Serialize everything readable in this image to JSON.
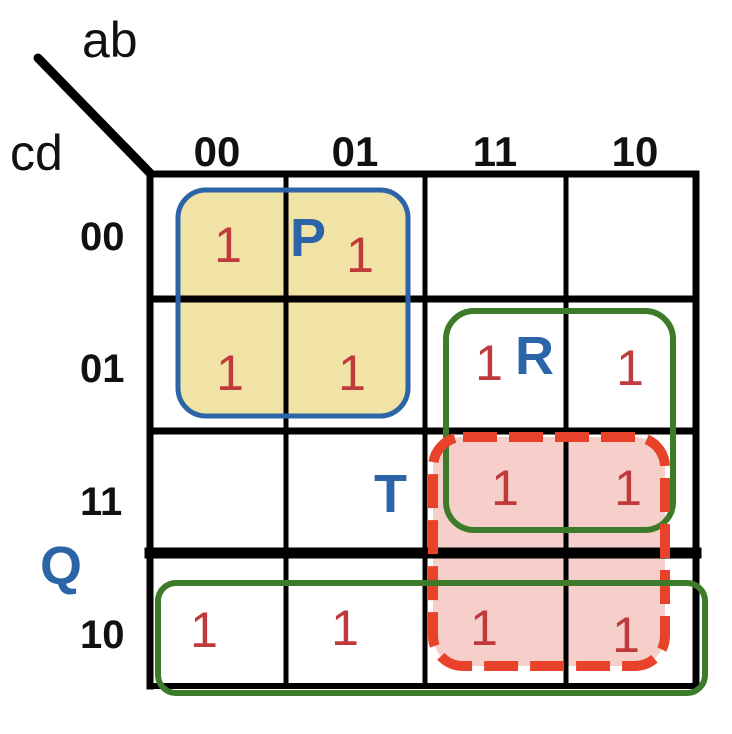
{
  "title_vars": {
    "columns": "ab",
    "rows": "cd"
  },
  "column_headers": [
    "00",
    "01",
    "11",
    "10"
  ],
  "row_headers": [
    "00",
    "01",
    "11",
    "10"
  ],
  "cells": [
    [
      "1",
      "1",
      "",
      ""
    ],
    [
      "1",
      "1",
      "1",
      "1"
    ],
    [
      "",
      "",
      "1",
      "1"
    ],
    [
      "1",
      "1",
      "1",
      "1"
    ]
  ],
  "groups": [
    {
      "label": "P",
      "color": "#2c64a8",
      "fill": "#f1e3a6",
      "style": "solid"
    },
    {
      "label": "R",
      "color": "#3d7a2a",
      "fill": "none",
      "style": "solid"
    },
    {
      "label": "T",
      "color": "#e8432a",
      "fill": "#f6cfcb",
      "style": "dashed"
    },
    {
      "label": "Q",
      "color": "#3d7a2a",
      "fill": "none",
      "style": "solid"
    }
  ],
  "colors": {
    "grid": "#000000",
    "ones": "#c0393b",
    "group_label": "#2c64a8"
  }
}
